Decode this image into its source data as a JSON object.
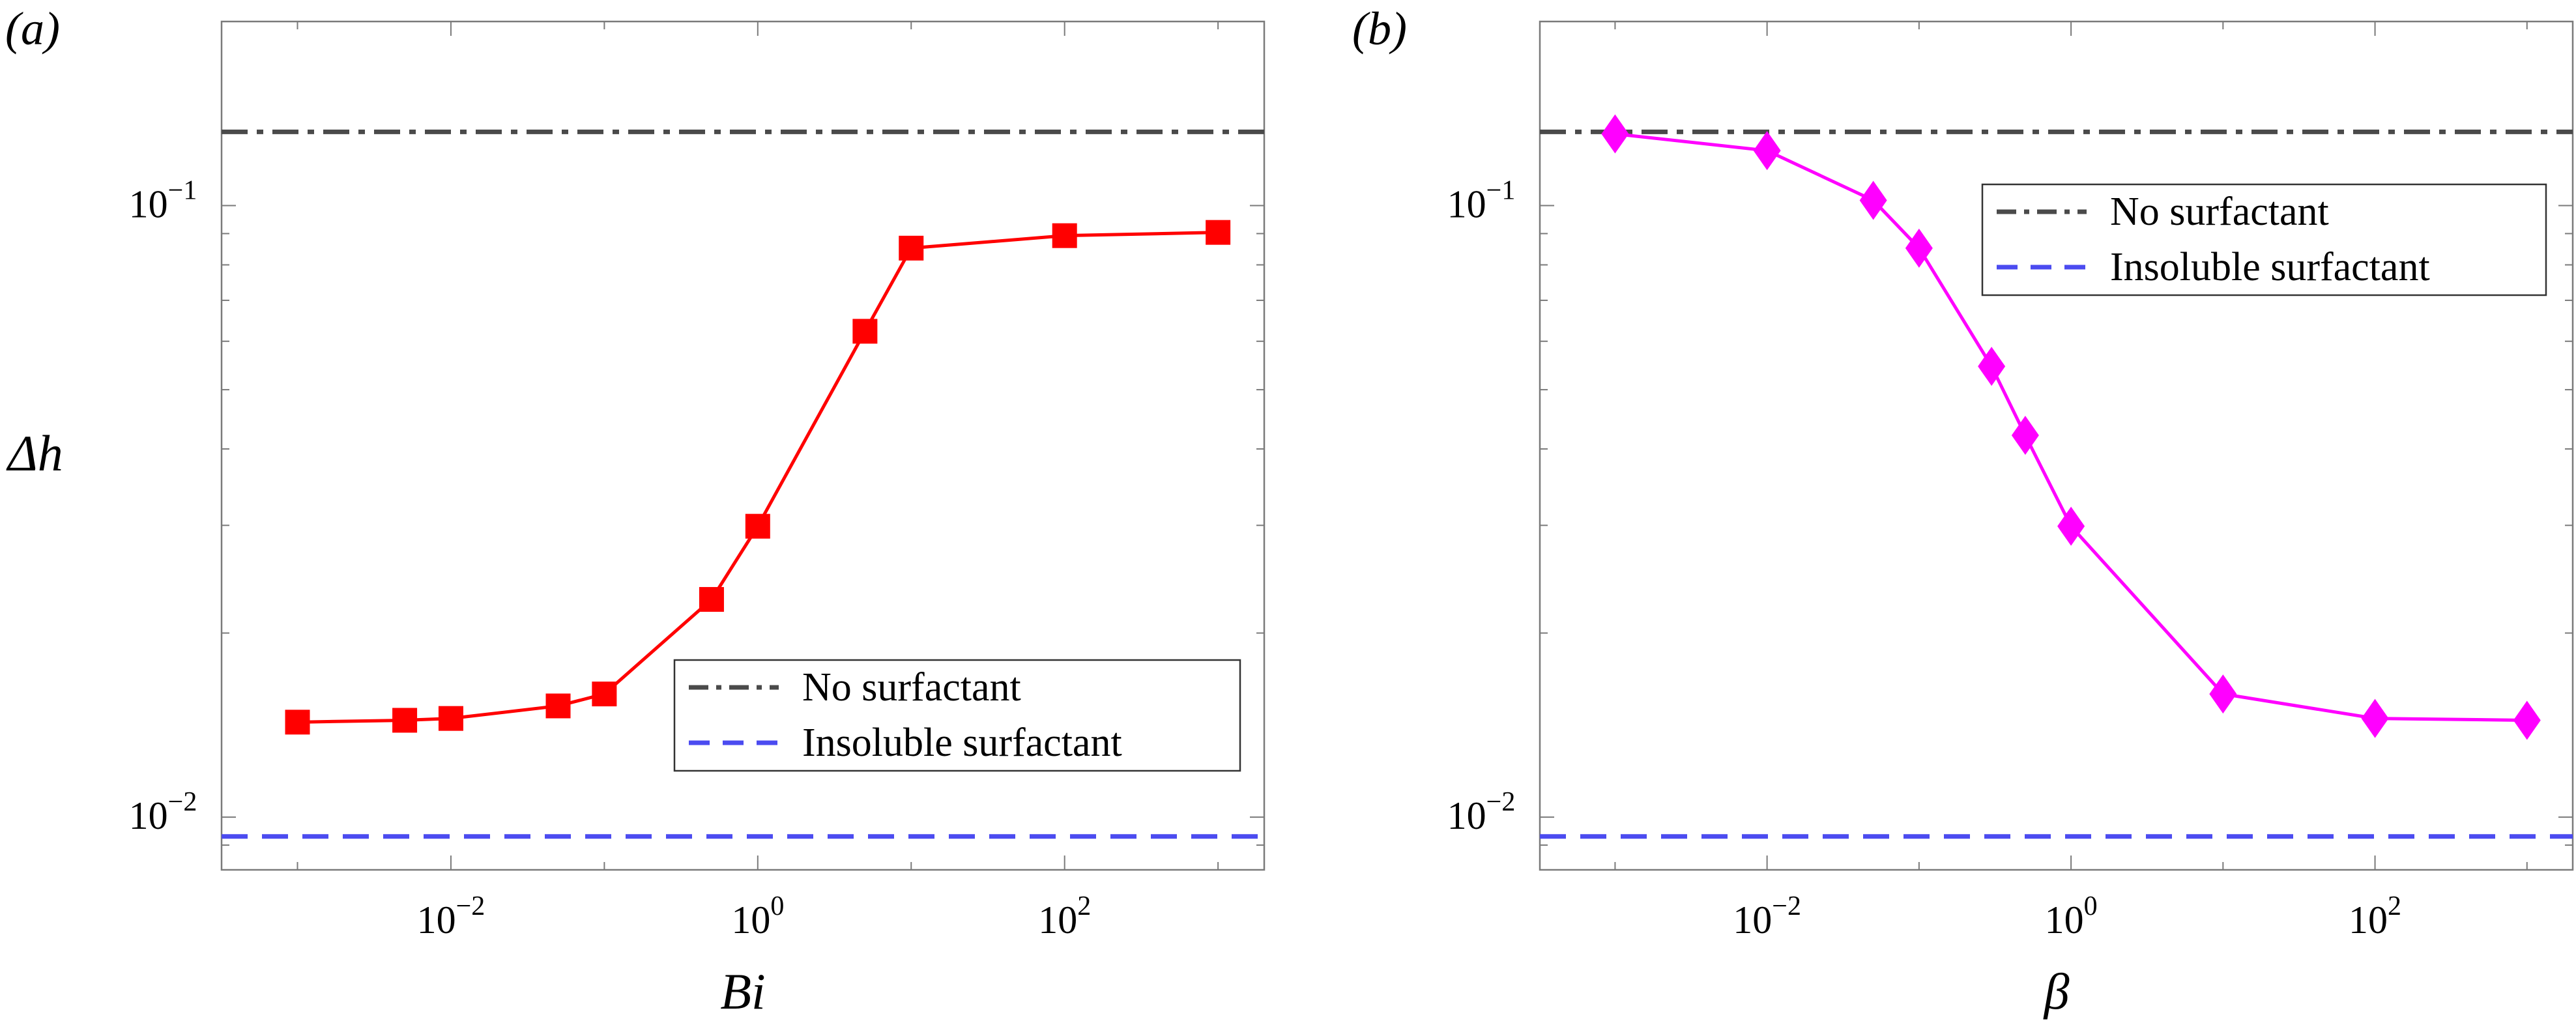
{
  "figure": {
    "panels": [
      {
        "label": "(a)",
        "xlabel": "Bi",
        "ylabel": "Δh"
      },
      {
        "label": "(b)",
        "xlabel": "β",
        "ylabel": ""
      }
    ]
  },
  "chart_data": [
    {
      "type": "line",
      "panel": "(a)",
      "title": "",
      "xlabel": "Bi",
      "ylabel": "Δh",
      "xscale": "log",
      "yscale": "log",
      "xlim": [
        0.00032,
        2000
      ],
      "ylim": [
        0.0082,
        0.2
      ],
      "x_ticks": [
        {
          "value": 0.01,
          "base": "10",
          "exp": "−2"
        },
        {
          "value": 1,
          "base": "10",
          "exp": "0"
        },
        {
          "value": 100,
          "base": "10",
          "exp": "2"
        }
      ],
      "y_ticks": [
        {
          "value": 0.01,
          "base": "10",
          "exp": "−2"
        },
        {
          "value": 0.1,
          "base": "10",
          "exp": "−1"
        }
      ],
      "series": [
        {
          "color": "#ff0000",
          "marker": "square",
          "x": [
            0.001,
            0.005,
            0.01,
            0.05,
            0.1,
            0.5,
            1,
            5,
            10,
            100,
            1000
          ],
          "y": [
            0.0143,
            0.0144,
            0.0145,
            0.0152,
            0.0159,
            0.0227,
            0.0299,
            0.0623,
            0.0852,
            0.0893,
            0.0904
          ]
        }
      ],
      "reference_lines": [
        {
          "name": "No surfactant",
          "y": 0.132,
          "color": "#4a4a4a",
          "style": "dash-dot"
        },
        {
          "name": "Insoluble surfactant",
          "y": 0.0093,
          "color": "#4b4bf0",
          "style": "dashed"
        }
      ],
      "legend": {
        "placement": "bottom-right",
        "entries": [
          "No surfactant",
          "Insoluble surfactant"
        ]
      },
      "grid": false
    },
    {
      "type": "line",
      "panel": "(b)",
      "title": "",
      "xlabel": "β",
      "ylabel": "",
      "xscale": "log",
      "yscale": "log",
      "xlim": [
        0.00032,
        2000
      ],
      "ylim": [
        0.0082,
        0.2
      ],
      "x_ticks": [
        {
          "value": 0.01,
          "base": "10",
          "exp": "−2"
        },
        {
          "value": 1,
          "base": "10",
          "exp": "0"
        },
        {
          "value": 100,
          "base": "10",
          "exp": "2"
        }
      ],
      "y_ticks": [
        {
          "value": 0.01,
          "base": "10",
          "exp": "−2"
        },
        {
          "value": 0.1,
          "base": "10",
          "exp": "−1"
        }
      ],
      "series": [
        {
          "color": "#ff00ff",
          "marker": "diamond",
          "x": [
            0.001,
            0.01,
            0.05,
            0.1,
            0.3,
            0.5,
            1,
            10,
            100,
            1000
          ],
          "y": [
            0.131,
            0.123,
            0.102,
            0.0852,
            0.0546,
            0.0421,
            0.0299,
            0.0159,
            0.0145,
            0.0144
          ]
        }
      ],
      "reference_lines": [
        {
          "name": "No surfactant",
          "y": 0.132,
          "color": "#4a4a4a",
          "style": "dash-dot"
        },
        {
          "name": "Insoluble surfactant",
          "y": 0.0093,
          "color": "#4b4bf0",
          "style": "dashed"
        }
      ],
      "legend": {
        "placement": "top-right",
        "entries": [
          "No surfactant",
          "Insoluble surfactant"
        ]
      },
      "grid": false
    }
  ]
}
